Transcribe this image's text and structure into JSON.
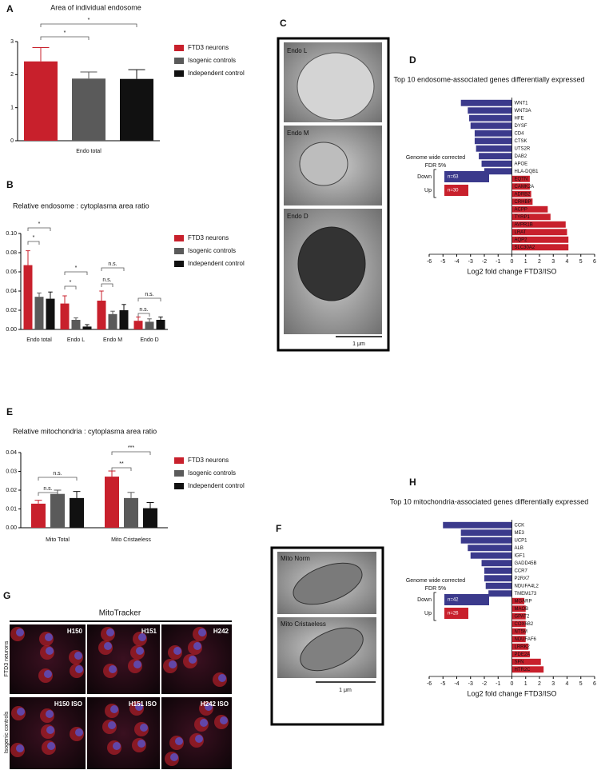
{
  "chart_data": [
    {
      "panel": "A",
      "type": "bar",
      "title": "Area of individual endosome",
      "categories": [
        "Endo total"
      ],
      "series": [
        {
          "name": "FTD3 neurons",
          "color": "#c8202c",
          "values": [
            2.4
          ],
          "errors": [
            0.42
          ]
        },
        {
          "name": "Isogenic controls",
          "color": "#5a5a5a",
          "values": [
            1.88
          ],
          "errors": [
            0.2
          ]
        },
        {
          "name": "Independent control",
          "color": "#111111",
          "values": [
            1.87
          ],
          "errors": [
            0.28
          ]
        }
      ],
      "ylim": [
        0,
        3
      ],
      "yticks": [
        0,
        1,
        2,
        3
      ],
      "annotations": [
        "*",
        "*"
      ]
    },
    {
      "panel": "B",
      "type": "bar",
      "title": "Relative endosome : cytoplasma area ratio",
      "categories": [
        "Endo total",
        "Endo L",
        "Endo M",
        "Endo D"
      ],
      "series": [
        {
          "name": "FTD3 neurons",
          "color": "#c8202c",
          "values": [
            0.067,
            0.027,
            0.03,
            0.009
          ],
          "errors": [
            0.015,
            0.008,
            0.01,
            0.004
          ]
        },
        {
          "name": "Isogenic controls",
          "color": "#5a5a5a",
          "values": [
            0.034,
            0.01,
            0.016,
            0.008
          ],
          "errors": [
            0.004,
            0.002,
            0.003,
            0.003
          ]
        },
        {
          "name": "Independent control",
          "color": "#111111",
          "values": [
            0.032,
            0.003,
            0.02,
            0.01
          ],
          "errors": [
            0.007,
            0.002,
            0.006,
            0.003
          ]
        }
      ],
      "ylim": [
        0,
        0.1
      ],
      "yticks": [
        {
          "value": 0,
          "label": "0.00"
        },
        {
          "value": 0.02,
          "label": "0.02"
        },
        {
          "value": 0.04,
          "label": "0.04"
        },
        {
          "value": 0.06,
          "label": "0.06"
        },
        {
          "value": 0.08,
          "label": "0.08"
        },
        {
          "value": 0.1,
          "label": "0.10"
        }
      ],
      "annotations": [
        "*",
        "*",
        "*",
        "*",
        "n.s.",
        "n.s.",
        "n.s.",
        "n.s."
      ]
    },
    {
      "panel": "E",
      "type": "bar",
      "title": "Relative mitochondria : cytoplasma area ratio",
      "categories": [
        "Mito Total",
        "Mito Cristaeless"
      ],
      "series": [
        {
          "name": "FTD3 neurons",
          "color": "#c8202c",
          "values": [
            0.0128,
            0.0272
          ],
          "errors": [
            0.0018,
            0.003
          ]
        },
        {
          "name": "Isogenic controls",
          "color": "#5a5a5a",
          "values": [
            0.018,
            0.0158
          ],
          "errors": [
            0.002,
            0.003
          ]
        },
        {
          "name": "Independent control",
          "color": "#111111",
          "values": [
            0.0158,
            0.0104
          ],
          "errors": [
            0.0035,
            0.003
          ]
        }
      ],
      "ylim": [
        0,
        0.04
      ],
      "yticks": [
        {
          "value": 0,
          "label": "0.00"
        },
        {
          "value": 0.01,
          "label": "0.01"
        },
        {
          "value": 0.02,
          "label": "0.02"
        },
        {
          "value": 0.03,
          "label": "0.03"
        },
        {
          "value": 0.04,
          "label": "0.04"
        }
      ],
      "annotations": [
        "n.s.",
        "n.s.",
        "**",
        "***"
      ]
    },
    {
      "panel": "D",
      "type": "hbar",
      "title": "Top 10 endosome-associated genes differentially expressed",
      "categories": [
        "WNT1",
        "WNT3A",
        "HFE",
        "DYSF",
        "CD4",
        "CTSK",
        "UTS2R",
        "DAB2",
        "APOE",
        "HLA-DQB1",
        "EQTN",
        "CAMK2A",
        "ADRB2",
        "CRHBP",
        "ACPP",
        "TYRP1",
        "AVPR1B",
        "LRAT",
        "AQP2",
        "SLC30A2"
      ],
      "values": [
        -3.7,
        -3.2,
        -3.1,
        -3.0,
        -2.7,
        -2.7,
        -2.6,
        -2.4,
        -2.2,
        -2.0,
        1.3,
        1.3,
        1.4,
        1.5,
        2.6,
        2.8,
        3.9,
        4.0,
        4.1,
        4.1
      ],
      "negative_color": "#3b3a8c",
      "positive_color": "#c8202c",
      "xlim": [
        -6,
        6
      ],
      "xticks": [
        -6,
        -5,
        -4,
        -3,
        -2,
        -1,
        0,
        1,
        2,
        3,
        4,
        5,
        6
      ],
      "x_label": "Log2 fold change FTD3/ISO",
      "inset": {
        "title": [
          "Genome wide corrected",
          "FDR 5%"
        ],
        "labels": [
          "Down",
          "Up"
        ],
        "counts": [
          "n=63",
          "n=30"
        ]
      }
    },
    {
      "panel": "H",
      "type": "hbar",
      "title": "Top 10 mitochondria-associated genes differentially expressed",
      "categories": [
        "CCK",
        "ME3",
        "UCP1",
        "ALB",
        "IGF1",
        "GADD45B",
        "CCR7",
        "P2RX7",
        "NDUFA4L2",
        "TMEM173",
        "MGARP",
        "MAOB",
        "GPAT2",
        "COX6B2",
        "NT5M",
        "NDUFAF6",
        "LRRK2",
        "PDE2A",
        "SFN",
        "HTR2C"
      ],
      "values": [
        -5.0,
        -3.7,
        -3.7,
        -3.2,
        -3.0,
        -2.2,
        -2.0,
        -2.0,
        -1.9,
        -1.7,
        0.9,
        1.0,
        1.0,
        1.0,
        1.0,
        1.0,
        1.2,
        1.3,
        2.1,
        2.3
      ],
      "negative_color": "#3b3a8c",
      "positive_color": "#c8202c",
      "xlim": [
        -6,
        6
      ],
      "xticks": [
        -6,
        -5,
        -4,
        -3,
        -2,
        -1,
        0,
        1,
        2,
        3,
        4,
        5,
        6
      ],
      "x_label": "Log2 fold change FTD3/ISO",
      "inset": {
        "title": [
          "Genome wide corrected",
          "FDR 5%"
        ],
        "labels": [
          "Down",
          "Up"
        ],
        "counts": [
          "n=42",
          "n=26"
        ]
      }
    }
  ],
  "images": [
    {
      "panel": "C",
      "labels": [
        "Endo L",
        "Endo M",
        "Endo D"
      ],
      "scale": "1 μm"
    },
    {
      "panel": "F",
      "labels": [
        "Mito Norm",
        "Mito Cristaeless"
      ],
      "scale": "1 μm"
    },
    {
      "panel": "G",
      "title": "MitoTracker",
      "rows": [
        "FTD3 neurons",
        "Isogenic controls"
      ],
      "labels": [
        "H150",
        "H151",
        "H242",
        "H150 ISO",
        "H151 ISO",
        "H242 ISO"
      ]
    }
  ]
}
